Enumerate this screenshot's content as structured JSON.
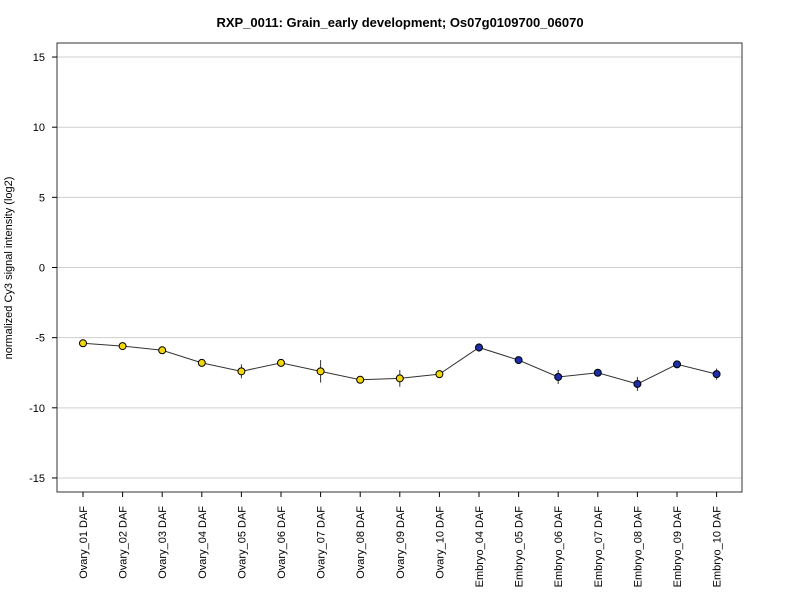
{
  "chart_data": {
    "type": "line",
    "title": "RXP_0011: Grain_early development; Os07g0109700_06070",
    "xlabel": "",
    "ylabel": "normalized Cy3 signal intensity (log2)",
    "ylim": [
      -16,
      16
    ],
    "yticks": [
      15,
      10,
      5,
      0,
      -5,
      -10,
      -15
    ],
    "grid": "horizontal",
    "categories": [
      "Ovary_01 DAF",
      "Ovary_02 DAF",
      "Ovary_03 DAF",
      "Ovary_04 DAF",
      "Ovary_05 DAF",
      "Ovary_06 DAF",
      "Ovary_07 DAF",
      "Ovary_08 DAF",
      "Ovary_09 DAF",
      "Ovary_10 DAF",
      "Embryo_04 DAF",
      "Embryo_05 DAF",
      "Embryo_06 DAF",
      "Embryo_07 DAF",
      "Embryo_08 DAF",
      "Embryo_09 DAF",
      "Embryo_10 DAF"
    ],
    "values": [
      -5.4,
      -5.6,
      -5.9,
      -6.8,
      -7.4,
      -6.8,
      -7.4,
      -8.0,
      -7.9,
      -7.6,
      -5.7,
      -6.6,
      -7.8,
      -7.5,
      -8.3,
      -6.9,
      -7.6
    ],
    "error": [
      0.2,
      0.15,
      0.15,
      0.2,
      0.5,
      0.25,
      0.8,
      0.2,
      0.6,
      0.2,
      0.3,
      0.2,
      0.5,
      0.2,
      0.5,
      0.2,
      0.4
    ],
    "point_colors": [
      "#f2d70c",
      "#f2d70c",
      "#f2d70c",
      "#f2d70c",
      "#f2d70c",
      "#f2d70c",
      "#f2d70c",
      "#f2d70c",
      "#f2d70c",
      "#f2d70c",
      "#1c2ea8",
      "#1c2ea8",
      "#1c2ea8",
      "#1c2ea8",
      "#1c2ea8",
      "#1c2ea8",
      "#1c2ea8"
    ]
  }
}
